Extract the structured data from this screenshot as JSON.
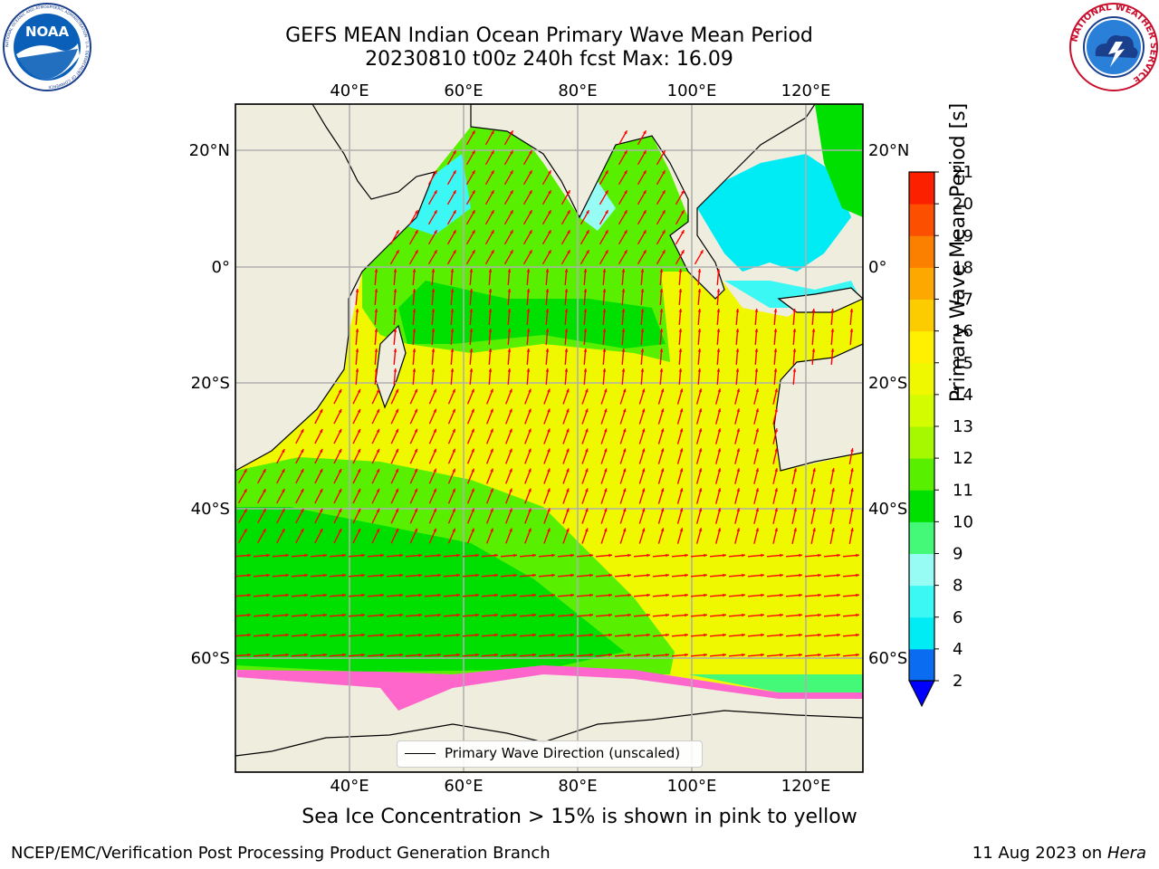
{
  "title": {
    "line1": "GEFS MEAN Indian Ocean Primary Wave Mean Period",
    "line2": "20230810 t00z 240h fcst   Max: 16.09"
  },
  "logos": {
    "left": "noaa-logo",
    "left_text": "NOAA",
    "left_ring_text": "NATIONAL OCEANIC AND ATMOSPHERIC ADMINISTRATION · U.S. DEPARTMENT OF COMMERCE",
    "right": "nws-logo",
    "right_ring_text": "NATIONAL WEATHER SERVICE"
  },
  "map": {
    "lon_ticks_top": [
      "40°E",
      "60°E",
      "80°E",
      "100°E",
      "120°E"
    ],
    "lon_ticks_bottom": [
      "40°E",
      "60°E",
      "80°E",
      "100°E",
      "120°E"
    ],
    "lat_ticks_left": [
      "20°N",
      "0°",
      "20°S",
      "40°S",
      "60°S"
    ],
    "lat_ticks_right": [
      "20°N",
      "0°",
      "20°S",
      "40°S",
      "60°S"
    ],
    "lon_values": [
      40,
      60,
      80,
      100,
      120
    ],
    "lat_values": [
      20,
      0,
      -20,
      -40,
      -60
    ],
    "extent": {
      "lon": [
        20,
        130
      ],
      "lat": [
        -70,
        28
      ]
    },
    "land_color": "#efedde",
    "grid": true
  },
  "colorbar": {
    "label": "Primary Wave Mean Period [s]",
    "ticks": [
      "2",
      "4",
      "6",
      "8",
      "9",
      "10",
      "11",
      "12",
      "13",
      "14",
      "15",
      "16",
      "17",
      "18",
      "19",
      "20",
      "21"
    ],
    "colors": [
      "#0a6cf0",
      "#00ecf4",
      "#3cf8f4",
      "#96fcf4",
      "#44f878",
      "#00e000",
      "#58f000",
      "#a6f800",
      "#d4fc00",
      "#f0f800",
      "#fef000",
      "#fccc00",
      "#fca800",
      "#fc8000",
      "#fc5000",
      "#fc2000"
    ],
    "extend_color": "#0000ff"
  },
  "legend": {
    "label": "Primary Wave Direction (unscaled)"
  },
  "caption": "Sea Ice Concentration > 15% is shown in pink to yellow",
  "footer": {
    "left": "NCEP/EMC/Verification Post Processing Product Generation Branch",
    "right_date": "11 Aug 2023 on",
    "right_host": "Hera"
  }
}
